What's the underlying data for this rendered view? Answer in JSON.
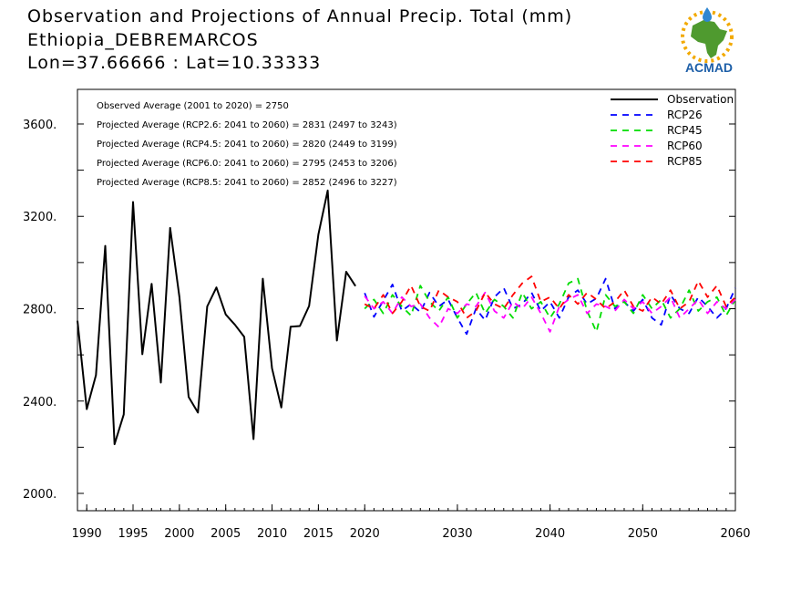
{
  "header": {
    "line1": "Observation and Projections of Annual Precip. Total (mm)",
    "line2": "Ethiopia_DEBREMARCOS",
    "line3": "Lon=37.66666 : Lat=10.33333"
  },
  "logo": {
    "text": "ACMAD",
    "colors": {
      "africa": "#4f9a2f",
      "text": "#1d5fa8",
      "sun": "#f2a900",
      "drop": "#2e86d1"
    }
  },
  "chart_data": {
    "type": "line",
    "xlim": [
      1989,
      2060
    ],
    "ylim": [
      1925,
      3750
    ],
    "x_ticks": [
      1990,
      1995,
      2000,
      2005,
      2010,
      2015,
      2020,
      2030,
      2040,
      2050,
      2060
    ],
    "y_ticks": [
      2000,
      2400,
      2800,
      3200,
      3600
    ],
    "y_tick_labels": [
      "2000.",
      "2400.",
      "2800.",
      "3200.",
      "3600."
    ],
    "annotations": [
      "Observed Average (2001 to 2020) = 2750",
      "Projected Average (RCP2.6: 2041 to 2060) = 2831 (2497 to 3243)",
      "Projected Average (RCP4.5: 2041 to 2060) = 2820 (2449 to 3199)",
      "Projected Average (RCP6.0: 2041 to 2060) = 2795 (2453 to 3206)",
      "Projected Average (RCP8.5: 2041 to 2060) = 2852 (2496 to 3227)"
    ],
    "legend_position": "top-right",
    "series": [
      {
        "name": "Observation",
        "color": "#000000",
        "dashed": false,
        "x": [
          1989,
          1990,
          1991,
          1992,
          1993,
          1994,
          1995,
          1996,
          1997,
          1998,
          1999,
          2000,
          2001,
          2002,
          2003,
          2004,
          2005,
          2006,
          2007,
          2008,
          2009,
          2010,
          2011,
          2012,
          2013,
          2014,
          2015,
          2016,
          2017,
          2018,
          2019
        ],
        "values": [
          2748,
          2365,
          2512,
          3072,
          2213,
          2342,
          3262,
          2603,
          2908,
          2480,
          3150,
          2850,
          2418,
          2350,
          2810,
          2892,
          2775,
          2730,
          2678,
          2235,
          2930,
          2542,
          2372,
          2722,
          2725,
          2812,
          3122,
          3312,
          2662,
          2960,
          2898
        ]
      },
      {
        "name": "RCP26",
        "color": "#0000ff",
        "dashed": true,
        "x": [
          2020,
          2021,
          2022,
          2023,
          2024,
          2025,
          2026,
          2027,
          2028,
          2029,
          2030,
          2031,
          2032,
          2033,
          2034,
          2035,
          2036,
          2037,
          2038,
          2039,
          2040,
          2041,
          2042,
          2043,
          2044,
          2045,
          2046,
          2047,
          2048,
          2049,
          2050,
          2051,
          2052,
          2053,
          2054,
          2055,
          2056,
          2057,
          2058,
          2059,
          2060
        ],
        "values": [
          2868,
          2765,
          2835,
          2905,
          2790,
          2820,
          2785,
          2870,
          2810,
          2840,
          2760,
          2690,
          2800,
          2750,
          2850,
          2890,
          2800,
          2820,
          2870,
          2790,
          2830,
          2760,
          2850,
          2880,
          2820,
          2845,
          2930,
          2800,
          2830,
          2790,
          2840,
          2760,
          2730,
          2860,
          2800,
          2780,
          2850,
          2810,
          2760,
          2800,
          2890
        ]
      },
      {
        "name": "RCP45",
        "color": "#00dd00",
        "dashed": true,
        "x": [
          2020,
          2021,
          2022,
          2023,
          2024,
          2025,
          2026,
          2027,
          2028,
          2029,
          2030,
          2031,
          2032,
          2033,
          2034,
          2035,
          2036,
          2037,
          2038,
          2039,
          2040,
          2041,
          2042,
          2043,
          2044,
          2045,
          2046,
          2047,
          2048,
          2049,
          2050,
          2051,
          2052,
          2053,
          2054,
          2055,
          2056,
          2057,
          2058,
          2059,
          2060
        ],
        "values": [
          2800,
          2840,
          2780,
          2860,
          2810,
          2770,
          2900,
          2830,
          2790,
          2850,
          2760,
          2820,
          2870,
          2780,
          2840,
          2810,
          2760,
          2870,
          2800,
          2830,
          2760,
          2820,
          2910,
          2930,
          2790,
          2700,
          2860,
          2810,
          2830,
          2780,
          2860,
          2800,
          2840,
          2760,
          2800,
          2880,
          2790,
          2830,
          2850,
          2770,
          2840
        ]
      },
      {
        "name": "RCP60",
        "color": "#ff00ff",
        "dashed": true,
        "x": [
          2020,
          2021,
          2022,
          2023,
          2024,
          2025,
          2026,
          2027,
          2028,
          2029,
          2030,
          2031,
          2032,
          2033,
          2034,
          2035,
          2036,
          2037,
          2038,
          2039,
          2040,
          2041,
          2042,
          2043,
          2044,
          2045,
          2046,
          2047,
          2048,
          2049,
          2050,
          2051,
          2052,
          2053,
          2054,
          2055,
          2056,
          2057,
          2058,
          2059,
          2060
        ],
        "values": [
          2855,
          2800,
          2830,
          2780,
          2850,
          2810,
          2820,
          2760,
          2720,
          2800,
          2780,
          2820,
          2810,
          2870,
          2790,
          2760,
          2830,
          2800,
          2850,
          2780,
          2700,
          2810,
          2840,
          2860,
          2780,
          2820,
          2810,
          2790,
          2840,
          2800,
          2830,
          2780,
          2810,
          2850,
          2760,
          2800,
          2840,
          2780,
          2830,
          2800,
          2840
        ]
      },
      {
        "name": "RCP85",
        "color": "#ff0000",
        "dashed": true,
        "x": [
          2020,
          2021,
          2022,
          2023,
          2024,
          2025,
          2026,
          2027,
          2028,
          2029,
          2030,
          2031,
          2032,
          2033,
          2034,
          2035,
          2036,
          2037,
          2038,
          2039,
          2040,
          2041,
          2042,
          2043,
          2044,
          2045,
          2046,
          2047,
          2048,
          2049,
          2050,
          2051,
          2052,
          2053,
          2054,
          2055,
          2056,
          2057,
          2058,
          2059,
          2060
        ],
        "values": [
          2820,
          2800,
          2860,
          2780,
          2830,
          2900,
          2810,
          2790,
          2880,
          2850,
          2830,
          2760,
          2790,
          2870,
          2820,
          2800,
          2860,
          2910,
          2940,
          2830,
          2850,
          2800,
          2860,
          2820,
          2870,
          2840,
          2800,
          2830,
          2880,
          2810,
          2790,
          2850,
          2820,
          2880,
          2800,
          2830,
          2920,
          2850,
          2900,
          2810,
          2850
        ]
      }
    ]
  }
}
